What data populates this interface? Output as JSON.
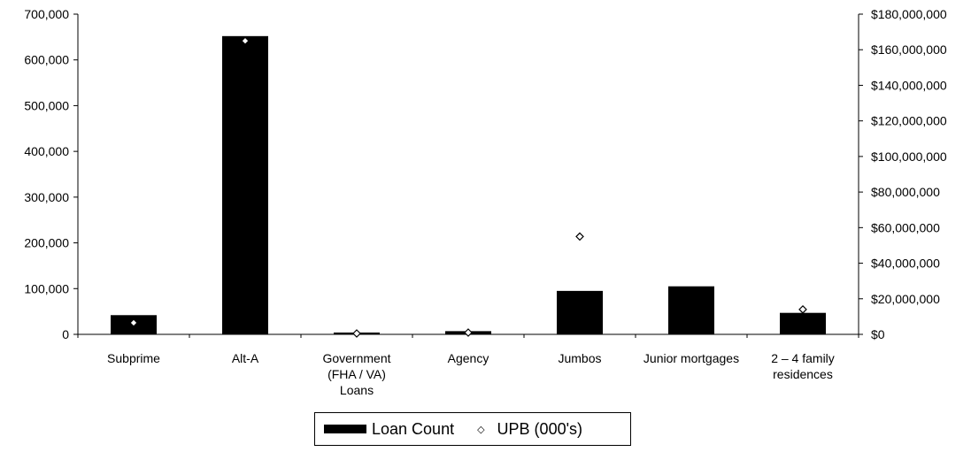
{
  "chart_data": {
    "type": "bar",
    "categories": [
      [
        "Subprime"
      ],
      [
        "Alt-A"
      ],
      [
        "Government",
        "(FHA / VA)",
        "Loans"
      ],
      [
        "Agency"
      ],
      [
        "Jumbos"
      ],
      [
        "Junior mortgages"
      ],
      [
        "2 – 4 family",
        "residences"
      ]
    ],
    "series": [
      {
        "name": "Loan Count",
        "axis": "left",
        "style": "bar",
        "color": "#000000",
        "values": [
          42000,
          652000,
          4000,
          7000,
          95000,
          105000,
          47000
        ]
      },
      {
        "name": "UPB (000's)",
        "axis": "right",
        "style": "marker",
        "color": "#000000",
        "values": [
          6500000,
          165000000,
          500000,
          1000000,
          55000000,
          null,
          14000000
        ]
      }
    ],
    "left_axis": {
      "ylim": [
        0,
        700000
      ],
      "ticks": [
        "0",
        "100,000",
        "200,000",
        "300,000",
        "400,000",
        "500,000",
        "600,000",
        "700,000"
      ]
    },
    "right_axis": {
      "ylim": [
        0,
        180000000
      ],
      "ticks": [
        "$0",
        "$20,000,000",
        "$40,000,000",
        "$60,000,000",
        "$80,000,000",
        "$100,000,000",
        "$120,000,000",
        "$140,000,000",
        "$160,000,000",
        "$180,000,000"
      ]
    },
    "grid": false,
    "legend_position": "bottom-center"
  },
  "legend": {
    "bar_label": "Loan Count",
    "marker_label": "UPB (000's)",
    "marker_icon": "diamond-marker-icon"
  }
}
